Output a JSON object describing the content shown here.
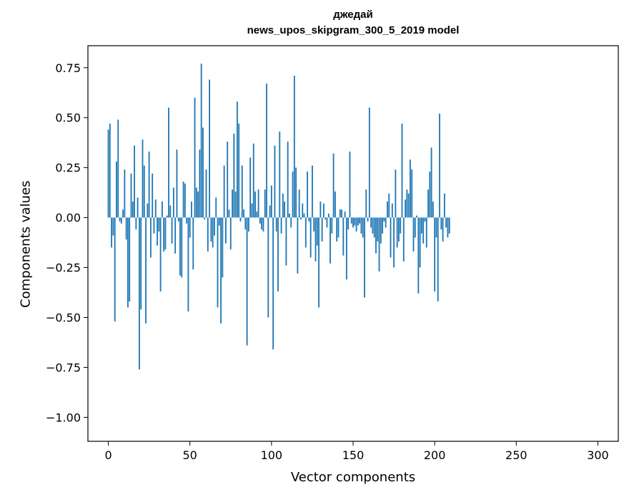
{
  "chart_data": {
    "type": "bar",
    "title": "джедай",
    "subtitle": "news_upos_skipgram_300_5_2019 model",
    "xlabel": "Vector components",
    "ylabel": "Components values",
    "xlim": [
      -12.5,
      312.5
    ],
    "ylim": [
      -1.12,
      0.86
    ],
    "grid": false,
    "color": "#1f77b4",
    "xticks": [
      0,
      50,
      100,
      150,
      200,
      250,
      300
    ],
    "xtick_labels": [
      "0",
      "50",
      "100",
      "150",
      "200",
      "250",
      "300"
    ],
    "yticks": [
      -1.0,
      -0.75,
      -0.5,
      -0.25,
      0.0,
      0.25,
      0.5,
      0.75
    ],
    "ytick_labels": [
      "−1.00",
      "−0.75",
      "−0.50",
      "−0.25",
      "0.00",
      "0.25",
      "0.50",
      "0.75"
    ],
    "values": [
      0.44,
      0.47,
      -0.15,
      -0.09,
      -0.52,
      0.28,
      0.49,
      -0.02,
      -0.03,
      0.04,
      0.24,
      -0.11,
      -0.45,
      -0.42,
      0.22,
      0.08,
      0.36,
      -0.06,
      0.1,
      -0.76,
      -0.46,
      0.39,
      0.26,
      -0.53,
      0.07,
      0.33,
      -0.2,
      0.22,
      -0.08,
      0.09,
      -0.14,
      -0.07,
      -0.37,
      0.08,
      -0.17,
      -0.16,
      0.01,
      0.55,
      0.06,
      -0.13,
      0.15,
      -0.18,
      0.34,
      -0.02,
      -0.29,
      -0.3,
      0.18,
      0.17,
      -0.03,
      -0.47,
      -0.1,
      0.08,
      -0.26,
      0.6,
      0.15,
      0.13,
      0.34,
      0.77,
      0.45,
      -0.01,
      0.24,
      -0.17,
      0.69,
      -0.12,
      -0.15,
      -0.09,
      0.1,
      -0.45,
      -0.04,
      -0.53,
      -0.3,
      0.26,
      -0.13,
      0.38,
      0.04,
      -0.16,
      0.14,
      0.42,
      0.13,
      0.58,
      0.47,
      -0.02,
      0.26,
      0.04,
      -0.06,
      -0.64,
      -0.07,
      0.3,
      0.07,
      0.37,
      0.13,
      0.03,
      0.14,
      -0.03,
      -0.06,
      -0.07,
      0.14,
      0.67,
      -0.5,
      0.06,
      0.16,
      -0.66,
      0.36,
      -0.07,
      -0.37,
      0.43,
      -0.08,
      0.12,
      0.08,
      -0.24,
      0.38,
      0.02,
      -0.05,
      0.23,
      0.71,
      0.25,
      -0.28,
      0.14,
      -0.01,
      0.07,
      0.02,
      -0.15,
      0.23,
      -0.02,
      -0.2,
      0.26,
      -0.07,
      -0.22,
      -0.14,
      -0.45,
      0.08,
      -0.12,
      0.07,
      -0.01,
      -0.05,
      0.02,
      -0.23,
      -0.08,
      0.32,
      0.13,
      -0.12,
      -0.1,
      0.04,
      0.04,
      -0.19,
      0.03,
      -0.31,
      -0.06,
      0.33,
      -0.03,
      -0.05,
      -0.04,
      -0.07,
      -0.04,
      -0.03,
      -0.08,
      -0.1,
      -0.4,
      0.14,
      -0.02,
      0.55,
      -0.05,
      -0.08,
      -0.1,
      -0.18,
      -0.12,
      -0.27,
      -0.13,
      -0.08,
      -0.02,
      -0.05,
      0.08,
      0.12,
      -0.2,
      0.07,
      -0.25,
      0.24,
      -0.15,
      -0.12,
      -0.08,
      0.47,
      -0.22,
      0.09,
      0.14,
      0.12,
      0.29,
      0.24,
      -0.17,
      -0.1,
      0.01,
      -0.38,
      -0.25,
      -0.08,
      -0.13,
      -0.02,
      -0.15,
      0.14,
      0.23,
      0.35,
      0.08,
      -0.37,
      -0.1,
      -0.42,
      0.52,
      -0.06,
      -0.12,
      0.12,
      -0.05,
      -0.1,
      -0.08
    ]
  }
}
